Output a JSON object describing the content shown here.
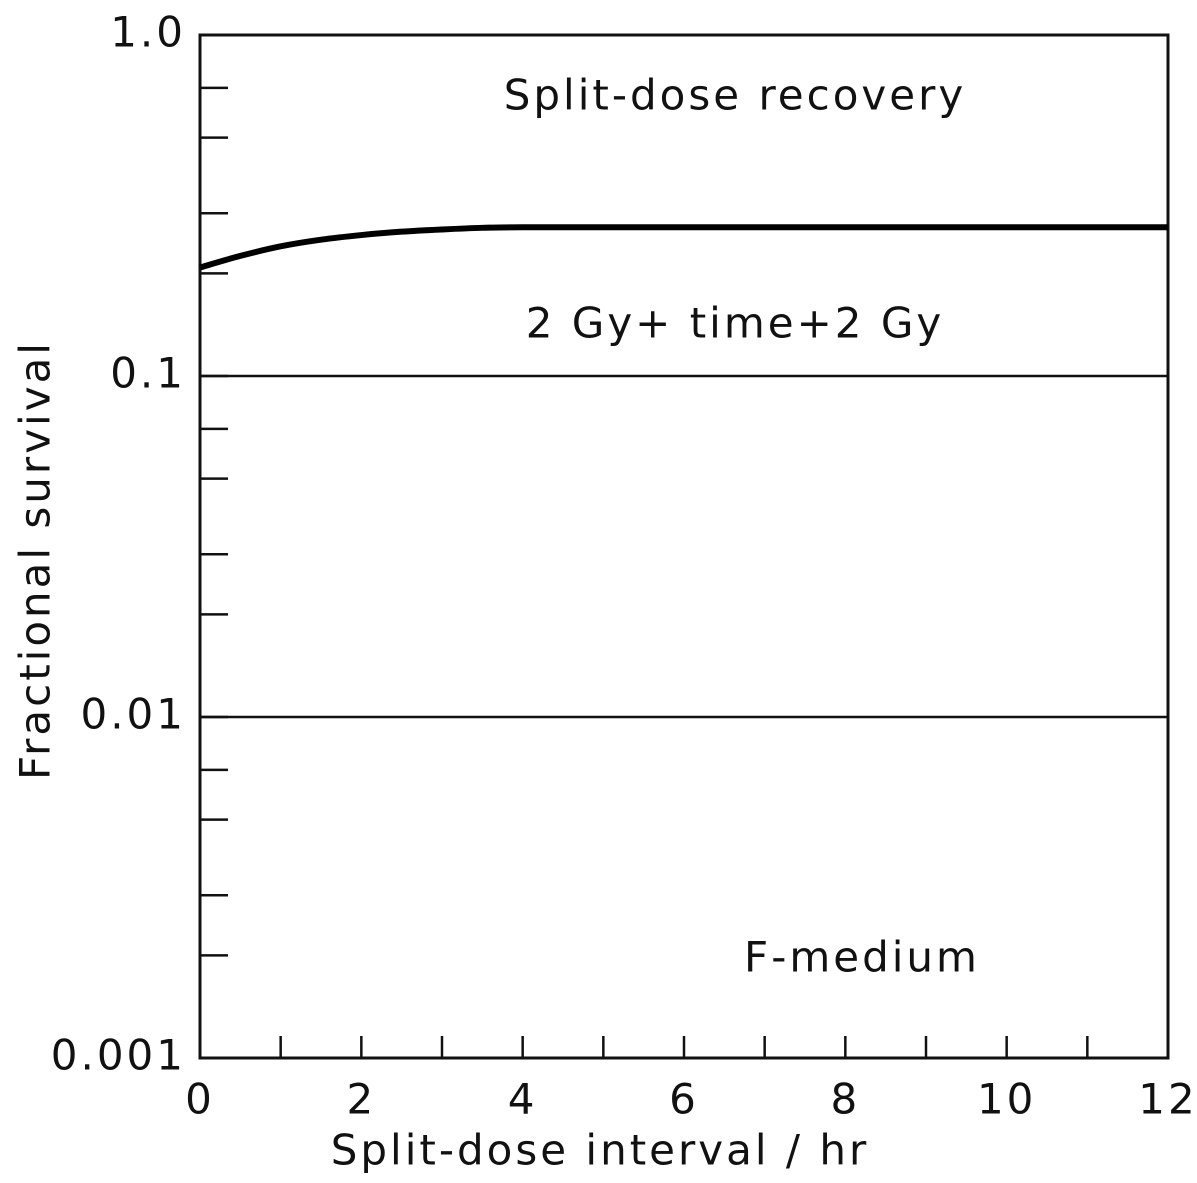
{
  "chart_data": {
    "type": "line",
    "log_y": true,
    "grid": true,
    "xlabel": "Split-dose interval / hr",
    "ylabel": "Fractional survival",
    "annotations": [
      "Split-dose recovery",
      "2 Gy+ time+2 Gy",
      "F-medium"
    ],
    "xlim": [
      0,
      12
    ],
    "xticks": [
      0,
      2,
      4,
      6,
      8,
      10,
      12
    ],
    "xminorticks": [
      1,
      3,
      5,
      7,
      9,
      11
    ],
    "ylim": [
      0.001,
      1
    ],
    "yticks": [
      {
        "value": 1,
        "label": "1.0"
      },
      0.1,
      0.01,
      0.001
    ],
    "yminorticks": [
      0.7,
      0.5,
      0.3,
      0.2,
      0.07,
      0.05,
      0.03,
      0.02,
      0.007,
      0.005,
      0.003,
      0.002
    ],
    "x": [
      0,
      0.5,
      1,
      1.5,
      2,
      2.5,
      3,
      3.5,
      4,
      6,
      8,
      10,
      12
    ],
    "series": [
      {
        "color": "#000000",
        "values": [
          0.208,
          0.225,
          0.24,
          0.251,
          0.259,
          0.265,
          0.269,
          0.272,
          0.273,
          0.273,
          0.273,
          0.273,
          0.273
        ]
      }
    ]
  }
}
